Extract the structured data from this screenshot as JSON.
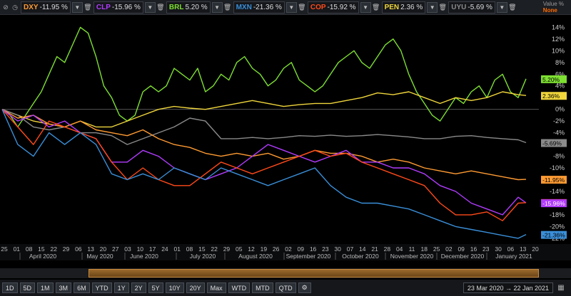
{
  "legend": {
    "items": [
      {
        "name": "DXY",
        "value": "-11.95 %",
        "color": "#ff9b33"
      },
      {
        "name": "CLP",
        "value": "-15.96 %",
        "color": "#b23cff"
      },
      {
        "name": "BRL",
        "value": "5.20 %",
        "color": "#7ee032"
      },
      {
        "name": "MXN",
        "value": "-21.36 %",
        "color": "#3a8fd9"
      },
      {
        "name": "COP",
        "value": "-15.92 %",
        "color": "#ff4a1a"
      },
      {
        "name": "PEN",
        "value": "2.36 %",
        "color": "#f0d63c"
      },
      {
        "name": "UYU",
        "value": "-5.69 %",
        "color": "#8a8a8a"
      }
    ],
    "value_label": "Value %",
    "value_mode": "None"
  },
  "chart_data": {
    "type": "line",
    "ylim": [
      -22.5,
      15.5
    ],
    "yticks": [
      "14%",
      "12%",
      "10%",
      "8%",
      "6%",
      "4%",
      "2%",
      "0%",
      "-2%",
      "-4%",
      "-6%",
      "-8%",
      "-10%",
      "-12%",
      "-14%",
      "-16%",
      "-18%",
      "-20%",
      "-22%"
    ],
    "ytick_values": [
      14,
      12,
      10,
      8,
      6,
      4,
      2,
      0,
      -2,
      -4,
      -6,
      -8,
      -10,
      -12,
      -14,
      -16,
      -18,
      -20,
      -22
    ],
    "day_ticks": [
      "25",
      "01",
      "08",
      "15",
      "22",
      "29",
      "06",
      "13",
      "20",
      "27",
      "03",
      "10",
      "17",
      "24",
      "01",
      "08",
      "15",
      "22",
      "29",
      "05",
      "12",
      "19",
      "26",
      "02",
      "09",
      "16",
      "23",
      "30",
      "07",
      "14",
      "21",
      "28",
      "04",
      "11",
      "18",
      "25",
      "02",
      "09",
      "16",
      "23",
      "30",
      "06",
      "13",
      "20"
    ],
    "month_labels": [
      "April 2020",
      "May 2020",
      "June 2020",
      "July 2020",
      "August 2020",
      "September 2020",
      "October 2020",
      "November 2020",
      "December 2020",
      "January 2021"
    ],
    "end_labels": [
      {
        "text": "5.20%",
        "value": 5.2,
        "color": "#7ee032",
        "textcolor": "#000"
      },
      {
        "text": "2.36%",
        "value": 2.36,
        "color": "#f0d63c",
        "textcolor": "#000"
      },
      {
        "text": "-5.69%",
        "value": -5.69,
        "color": "#8a8a8a",
        "textcolor": "#000"
      },
      {
        "text": "-11.95%",
        "value": -11.95,
        "color": "#ff9b33",
        "textcolor": "#000"
      },
      {
        "text": "-15.92%",
        "value": -15.92,
        "color": "#ff4a1a",
        "textcolor": "#000"
      },
      {
        "text": "-15.96%",
        "value": -15.96,
        "color": "#b23cff",
        "textcolor": "#fff"
      },
      {
        "text": "-21.36%",
        "value": -21.36,
        "color": "#3a8fd9",
        "textcolor": "#000"
      }
    ],
    "series": [
      {
        "name": "BRL",
        "color": "#7ee032",
        "x": [
          0,
          3,
          6,
          9,
          12,
          15,
          18,
          21,
          24,
          27,
          30,
          33,
          36,
          39,
          42,
          45,
          48,
          51,
          54,
          57,
          60,
          63,
          66,
          69,
          72,
          75,
          78,
          81,
          84,
          87,
          90,
          93,
          96,
          99,
          102,
          105,
          108,
          111,
          114,
          117,
          120,
          123,
          126,
          129,
          132,
          135,
          138,
          141,
          144,
          147,
          150,
          153,
          156,
          159,
          162,
          165,
          168,
          171,
          174,
          177,
          180,
          183,
          186,
          189,
          192,
          195,
          198,
          201
        ],
        "y": [
          0,
          -1,
          -3,
          -1,
          1,
          3,
          6,
          9,
          8,
          11,
          14,
          13,
          9,
          4,
          2,
          -1,
          -2,
          -1,
          3,
          4,
          3,
          4,
          7,
          6,
          5,
          7,
          3,
          4,
          6,
          5,
          8,
          9,
          7,
          6,
          4,
          5,
          7,
          8,
          5,
          4,
          3,
          4,
          6,
          8,
          9,
          10,
          8,
          7,
          9,
          11,
          12,
          10,
          6,
          3,
          1,
          -1,
          -2,
          0,
          2,
          1,
          3,
          4,
          2,
          5,
          6,
          3,
          2,
          5.2
        ]
      },
      {
        "name": "PEN",
        "color": "#f0d63c",
        "x": [
          0,
          6,
          12,
          18,
          24,
          30,
          36,
          42,
          48,
          54,
          60,
          66,
          72,
          78,
          84,
          90,
          96,
          102,
          108,
          114,
          120,
          126,
          132,
          138,
          144,
          150,
          156,
          162,
          168,
          174,
          180,
          186,
          192,
          198,
          201
        ],
        "y": [
          0,
          -1,
          -2,
          -2.5,
          -3,
          -2,
          -3,
          -3,
          -2,
          -1,
          0,
          0.5,
          0.2,
          0,
          0.5,
          1,
          1.5,
          1,
          0.5,
          0.8,
          1,
          1,
          1.5,
          2,
          2.8,
          2.5,
          3,
          2,
          1,
          2,
          1.5,
          2,
          3,
          2.5,
          2.36
        ]
      },
      {
        "name": "UYU",
        "color": "#8a8a8a",
        "x": [
          0,
          6,
          12,
          18,
          24,
          30,
          36,
          42,
          48,
          54,
          60,
          66,
          72,
          78,
          84,
          90,
          96,
          102,
          108,
          114,
          120,
          126,
          132,
          138,
          144,
          150,
          156,
          162,
          168,
          174,
          180,
          186,
          192,
          198,
          201
        ],
        "y": [
          0,
          -1,
          -3,
          -3.5,
          -3,
          -4,
          -4,
          -4.5,
          -6,
          -5,
          -4,
          -3,
          -1.5,
          -2,
          -5,
          -5,
          -4.8,
          -5,
          -4.8,
          -4.5,
          -4.6,
          -4.4,
          -4.6,
          -4.5,
          -4.3,
          -4.5,
          -4.7,
          -5,
          -5,
          -4.6,
          -4.5,
          -4.8,
          -5,
          -5.2,
          -5.69
        ]
      },
      {
        "name": "DXY",
        "color": "#ff9b33",
        "x": [
          0,
          6,
          12,
          18,
          24,
          30,
          36,
          42,
          48,
          54,
          60,
          66,
          72,
          78,
          84,
          90,
          96,
          102,
          108,
          114,
          120,
          126,
          132,
          138,
          144,
          150,
          156,
          162,
          168,
          174,
          180,
          186,
          192,
          198,
          201
        ],
        "y": [
          0,
          -1.5,
          -1,
          -2.5,
          -3,
          -2,
          -3.5,
          -4,
          -4.5,
          -3.5,
          -5,
          -6,
          -6.5,
          -7.5,
          -8,
          -7.5,
          -8,
          -7.5,
          -8.5,
          -8,
          -7,
          -7.5,
          -7.5,
          -8,
          -9,
          -8.5,
          -9,
          -10,
          -10.5,
          -11,
          -10.5,
          -11,
          -11.5,
          -12,
          -11.95
        ]
      },
      {
        "name": "CLP",
        "color": "#b23cff",
        "x": [
          0,
          6,
          12,
          18,
          24,
          30,
          36,
          42,
          48,
          54,
          60,
          66,
          72,
          78,
          84,
          90,
          96,
          102,
          108,
          114,
          120,
          126,
          132,
          138,
          144,
          150,
          156,
          162,
          168,
          174,
          180,
          186,
          192,
          198,
          201
        ],
        "y": [
          0,
          -2,
          -1,
          -3,
          -2,
          -4,
          -5,
          -9,
          -9,
          -7,
          -8,
          -10,
          -11,
          -12,
          -11,
          -10,
          -8,
          -6,
          -7,
          -8,
          -9,
          -8,
          -7,
          -9,
          -9,
          -10,
          -10,
          -11,
          -13,
          -14,
          -16,
          -17,
          -18,
          -15,
          -15.96
        ]
      },
      {
        "name": "COP",
        "color": "#ff4a1a",
        "x": [
          0,
          6,
          12,
          18,
          24,
          30,
          36,
          42,
          48,
          54,
          60,
          66,
          72,
          78,
          84,
          90,
          96,
          102,
          108,
          114,
          120,
          126,
          132,
          138,
          144,
          150,
          156,
          162,
          168,
          174,
          180,
          186,
          192,
          198,
          201
        ],
        "y": [
          0,
          -3,
          -6,
          -2,
          -3,
          -4,
          -5,
          -9,
          -12,
          -10,
          -12,
          -13,
          -13,
          -11,
          -9,
          -10,
          -11,
          -10,
          -9,
          -8,
          -7,
          -8,
          -7.5,
          -9,
          -10,
          -11,
          -12,
          -13,
          -16,
          -18,
          -18,
          -17.5,
          -19,
          -16,
          -15.92
        ]
      },
      {
        "name": "MXN",
        "color": "#3a8fd9",
        "x": [
          0,
          6,
          12,
          18,
          24,
          30,
          36,
          42,
          48,
          54,
          60,
          66,
          72,
          78,
          84,
          90,
          96,
          102,
          108,
          114,
          120,
          126,
          132,
          138,
          144,
          150,
          156,
          162,
          168,
          174,
          180,
          186,
          192,
          198,
          201
        ],
        "y": [
          0,
          -6,
          -8,
          -4,
          -6,
          -4,
          -6,
          -11,
          -12,
          -11,
          -12,
          -10,
          -11,
          -12,
          -10,
          -11,
          -12,
          -13,
          -12,
          -11,
          -10,
          -13,
          -15,
          -16,
          -16,
          -16.5,
          -17,
          -18,
          -19,
          -20,
          -20.5,
          -21,
          -21.5,
          -22,
          -21.36
        ]
      }
    ]
  },
  "toolbar": {
    "buttons": [
      "1D",
      "5D",
      "1M",
      "3M",
      "6M",
      "YTD",
      "1Y",
      "2Y",
      "5Y",
      "10Y",
      "20Y",
      "Max",
      "WTD",
      "MTD",
      "QTD"
    ],
    "date_range": "23 Mar 2020  →  22 Jan 2021"
  }
}
